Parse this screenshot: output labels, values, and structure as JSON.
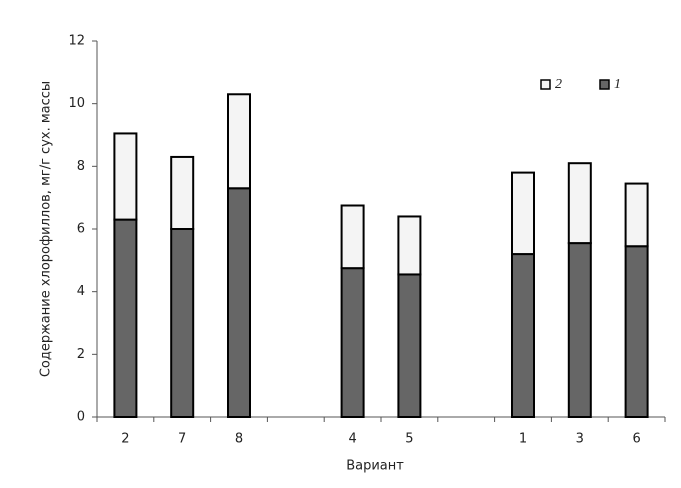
{
  "chart_data": {
    "type": "bar",
    "stacked": true,
    "x_label": "Вариант",
    "y_label": "Содержание хлорофиллов, мг/г сух. массы",
    "categories": [
      "2",
      "7",
      "8",
      null,
      "4",
      "5",
      null,
      "1",
      "3",
      "6"
    ],
    "series": [
      {
        "name": "1",
        "color": "#666666",
        "values": [
          6.3,
          6.0,
          7.3,
          null,
          4.75,
          4.55,
          null,
          5.2,
          5.55,
          5.45
        ]
      },
      {
        "name": "2",
        "color": "#f4f4f4",
        "values": [
          2.75,
          2.3,
          3.0,
          null,
          2.0,
          1.85,
          null,
          2.6,
          2.55,
          2.0
        ]
      }
    ],
    "ylim": [
      0,
      12
    ],
    "yticks": [
      0,
      2,
      4,
      6,
      8,
      10,
      12
    ]
  }
}
